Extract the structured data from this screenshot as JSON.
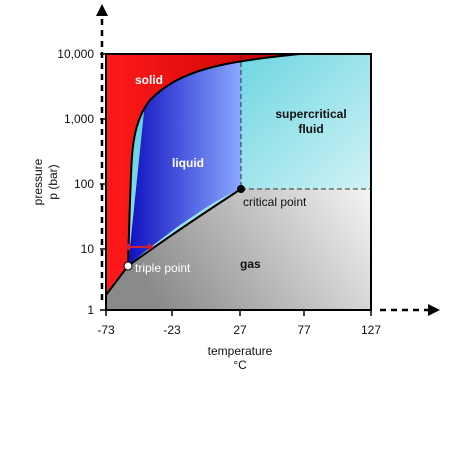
{
  "axes": {
    "y_label": [
      "pressure",
      "p (bar)"
    ],
    "x_label": [
      "temperature",
      "°C"
    ],
    "x_ticks": [
      "-73",
      "-23",
      "27",
      "77",
      "127"
    ],
    "y_ticks": [
      "10,000",
      "1,000",
      "100",
      "10",
      "1"
    ]
  },
  "regions": {
    "solid": "solid",
    "liquid": "liquid",
    "supercritical": [
      "supercritical",
      "fluid"
    ],
    "gas": "gas"
  },
  "points": {
    "triple": "triple point",
    "critical": "critical point"
  }
}
